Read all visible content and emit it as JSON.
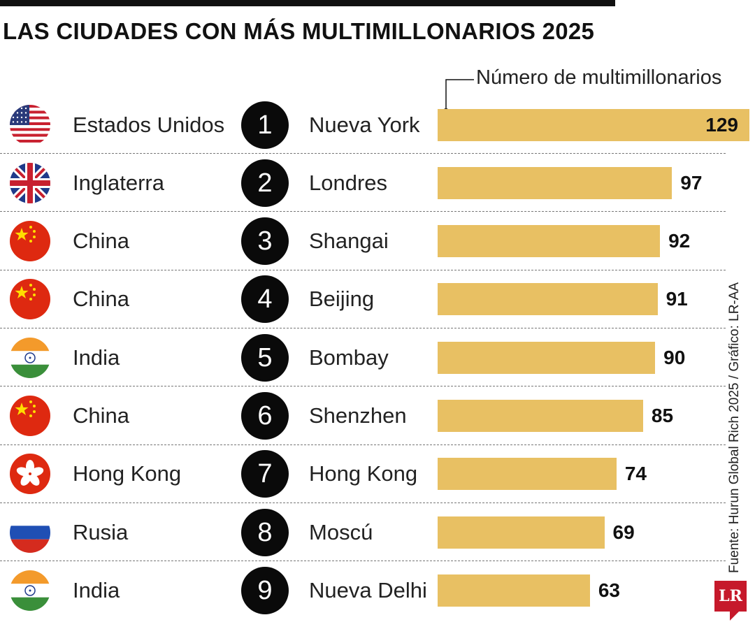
{
  "title": "LAS CIUDADES CON MÁS MULTIMILLONARIOS 2025",
  "legend": "Número de multimillonarios",
  "source": "Fuente: Hurun Global Rich 2025 / Gráfico: LR-AA",
  "logo_text": "LR",
  "chart_data": {
    "type": "bar",
    "orientation": "horizontal",
    "title": "LAS CIUDADES CON MÁS MULTIMILLONARIOS 2025",
    "xlabel": "Número de multimillonarios",
    "xlim": [
      0,
      129
    ],
    "rows": [
      {
        "rank": "1",
        "country": "Estados Unidos",
        "flag": "usa-flag-icon",
        "city": "Nueva York",
        "value": 129
      },
      {
        "rank": "2",
        "country": "Inglaterra",
        "flag": "uk-flag-icon",
        "city": "Londres",
        "value": 97
      },
      {
        "rank": "3",
        "country": "China",
        "flag": "china-flag-icon",
        "city": "Shangai",
        "value": 92
      },
      {
        "rank": "4",
        "country": "China",
        "flag": "china-flag-icon",
        "city": "Beijing",
        "value": 91
      },
      {
        "rank": "5",
        "country": "India",
        "flag": "india-flag-icon",
        "city": "Bombay",
        "value": 90
      },
      {
        "rank": "6",
        "country": "China",
        "flag": "china-flag-icon",
        "city": "Shenzhen",
        "value": 85
      },
      {
        "rank": "7",
        "country": "Hong Kong",
        "flag": "hongkong-flag-icon",
        "city": "Hong Kong",
        "value": 74
      },
      {
        "rank": "8",
        "country": "Rusia",
        "flag": "russia-flag-icon",
        "city": "Moscú",
        "value": 69
      },
      {
        "rank": "9",
        "country": "India",
        "flag": "india-flag-icon",
        "city": "Nueva Delhi",
        "value": 63
      }
    ]
  },
  "colors": {
    "bar": "#e8c063",
    "rank_circle": "#0a0a0a",
    "logo": "#c6192b"
  }
}
